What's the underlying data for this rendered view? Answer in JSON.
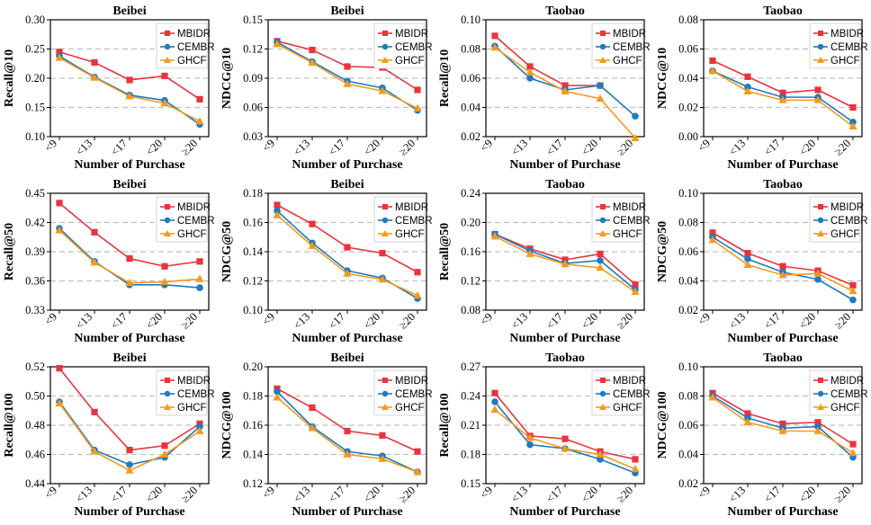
{
  "colors": {
    "MBIDR": "#e8343f",
    "CEMBR": "#1f7ac0",
    "GHCF": "#f39a1e",
    "grid": "#c0c0c0"
  },
  "legend": [
    "MBIDR",
    "CEMBR",
    "GHCF"
  ],
  "chart_data": [
    {
      "type": "line",
      "title": "Beibei",
      "ylabel": "Recall@10",
      "xlabel": "Number of Purchase",
      "categories": [
        "<9",
        "<13",
        "<17",
        "<20",
        "≥20"
      ],
      "ylim": [
        0.1,
        0.3
      ],
      "yticks": [
        "0.10",
        "0.15",
        "0.20",
        "0.25",
        "0.30"
      ],
      "series": [
        {
          "name": "MBIDR",
          "values": [
            0.245,
            0.227,
            0.197,
            0.204,
            0.164
          ]
        },
        {
          "name": "CEMBR",
          "values": [
            0.238,
            0.202,
            0.171,
            0.162,
            0.121
          ]
        },
        {
          "name": "GHCF",
          "values": [
            0.235,
            0.201,
            0.169,
            0.157,
            0.126
          ]
        }
      ]
    },
    {
      "type": "line",
      "title": "Beibei",
      "ylabel": "NDCG@10",
      "xlabel": "Number of Purchase",
      "categories": [
        "<9",
        "<13",
        "<17",
        "<20",
        "≥20"
      ],
      "ylim": [
        0.03,
        0.15
      ],
      "yticks": [
        "0.03",
        "0.06",
        "0.09",
        "0.12",
        "0.15"
      ],
      "series": [
        {
          "name": "MBIDR",
          "values": [
            0.128,
            0.119,
            0.102,
            0.101,
            0.078
          ]
        },
        {
          "name": "CEMBR",
          "values": [
            0.127,
            0.107,
            0.087,
            0.08,
            0.057
          ]
        },
        {
          "name": "GHCF",
          "values": [
            0.125,
            0.106,
            0.084,
            0.077,
            0.059
          ]
        }
      ]
    },
    {
      "type": "line",
      "title": "Taobao",
      "ylabel": "Recall@10",
      "xlabel": "Number of Purchase",
      "categories": [
        "<9",
        "<13",
        "<17",
        "<20",
        "≥20"
      ],
      "ylim": [
        0.02,
        0.1
      ],
      "yticks": [
        "0.02",
        "0.04",
        "0.06",
        "0.08",
        "0.10"
      ],
      "series": [
        {
          "name": "MBIDR",
          "values": [
            0.089,
            0.068,
            0.055,
            0.055,
            null
          ]
        },
        {
          "name": "CEMBR",
          "values": [
            0.082,
            0.06,
            0.052,
            0.055,
            0.034
          ]
        },
        {
          "name": "GHCF",
          "values": [
            0.081,
            0.064,
            0.051,
            0.046,
            0.019
          ]
        }
      ]
    },
    {
      "type": "line",
      "title": "Taobao",
      "ylabel": "NDCG@10",
      "xlabel": "Number of Purchase",
      "categories": [
        "<9",
        "<13",
        "<17",
        "<20",
        "≥20"
      ],
      "ylim": [
        0.0,
        0.08
      ],
      "yticks": [
        "0.00",
        "0.02",
        "0.04",
        "0.06",
        "0.08"
      ],
      "series": [
        {
          "name": "MBIDR",
          "values": [
            0.052,
            0.041,
            0.03,
            0.032,
            0.02
          ]
        },
        {
          "name": "CEMBR",
          "values": [
            0.045,
            0.034,
            0.027,
            0.027,
            0.01
          ]
        },
        {
          "name": "GHCF",
          "values": [
            0.045,
            0.031,
            0.025,
            0.025,
            0.007
          ]
        }
      ]
    },
    {
      "type": "line",
      "title": "Beibei",
      "ylabel": "Recall@50",
      "xlabel": "Number of Purchase",
      "categories": [
        "<9",
        "<13",
        "<17",
        "<20",
        "≥20"
      ],
      "ylim": [
        0.33,
        0.45
      ],
      "yticks": [
        "0.33",
        "0.36",
        "0.39",
        "0.42",
        "0.45"
      ],
      "series": [
        {
          "name": "MBIDR",
          "values": [
            0.44,
            0.41,
            0.383,
            0.375,
            0.38
          ]
        },
        {
          "name": "CEMBR",
          "values": [
            0.414,
            0.38,
            0.356,
            0.356,
            0.353
          ]
        },
        {
          "name": "GHCF",
          "values": [
            0.412,
            0.379,
            0.358,
            0.359,
            0.362
          ]
        }
      ]
    },
    {
      "type": "line",
      "title": "Beibei",
      "ylabel": "NDCG@50",
      "xlabel": "Number of Purchase",
      "categories": [
        "<9",
        "<13",
        "<17",
        "<20",
        "≥20"
      ],
      "ylim": [
        0.1,
        0.18
      ],
      "yticks": [
        "0.10",
        "0.12",
        "0.14",
        "0.16",
        "0.18"
      ],
      "series": [
        {
          "name": "MBIDR",
          "values": [
            0.172,
            0.159,
            0.143,
            0.139,
            0.126
          ]
        },
        {
          "name": "CEMBR",
          "values": [
            0.168,
            0.146,
            0.127,
            0.122,
            0.108
          ]
        },
        {
          "name": "GHCF",
          "values": [
            0.165,
            0.144,
            0.125,
            0.121,
            0.11
          ]
        }
      ]
    },
    {
      "type": "line",
      "title": "Taobao",
      "ylabel": "Recall@50",
      "xlabel": "Number of Purchase",
      "categories": [
        "<9",
        "<13",
        "<17",
        "<20",
        "≥20"
      ],
      "ylim": [
        0.08,
        0.24
      ],
      "yticks": [
        "0.08",
        "0.12",
        "0.16",
        "0.20",
        "0.24"
      ],
      "series": [
        {
          "name": "MBIDR",
          "values": [
            0.184,
            0.164,
            0.149,
            0.157,
            0.115
          ]
        },
        {
          "name": "CEMBR",
          "values": [
            0.184,
            0.161,
            0.144,
            0.148,
            0.108
          ]
        },
        {
          "name": "GHCF",
          "values": [
            0.181,
            0.157,
            0.143,
            0.138,
            0.105
          ]
        }
      ]
    },
    {
      "type": "line",
      "title": "Taobao",
      "ylabel": "NDCG@50",
      "xlabel": "Number of Purchase",
      "categories": [
        "<9",
        "<13",
        "<17",
        "<20",
        "≥20"
      ],
      "ylim": [
        0.02,
        0.1
      ],
      "yticks": [
        "0.02",
        "0.04",
        "0.06",
        "0.08",
        "0.10"
      ],
      "series": [
        {
          "name": "MBIDR",
          "values": [
            0.073,
            0.059,
            0.05,
            0.047,
            0.037
          ]
        },
        {
          "name": "CEMBR",
          "values": [
            0.07,
            0.055,
            0.046,
            0.041,
            0.027
          ]
        },
        {
          "name": "GHCF",
          "values": [
            0.068,
            0.051,
            0.044,
            0.045,
            0.033
          ]
        }
      ]
    },
    {
      "type": "line",
      "title": "Beibei",
      "ylabel": "Recall@100",
      "xlabel": "Number of Purchase",
      "categories": [
        "<9",
        "<13",
        "<17",
        "<20",
        "≥20"
      ],
      "ylim": [
        0.44,
        0.52
      ],
      "yticks": [
        "0.44",
        "0.46",
        "0.48",
        "0.50",
        "0.52"
      ],
      "series": [
        {
          "name": "MBIDR",
          "values": [
            0.519,
            0.489,
            0.463,
            0.466,
            0.481
          ]
        },
        {
          "name": "CEMBR",
          "values": [
            0.496,
            0.463,
            0.453,
            0.458,
            0.479
          ]
        },
        {
          "name": "GHCF",
          "values": [
            0.495,
            0.462,
            0.449,
            0.46,
            0.476
          ]
        }
      ]
    },
    {
      "type": "line",
      "title": "Beibei",
      "ylabel": "NDCG@100",
      "xlabel": "Number of Purchase",
      "categories": [
        "<9",
        "<13",
        "<17",
        "<20",
        "≥20"
      ],
      "ylim": [
        0.12,
        0.2
      ],
      "yticks": [
        "0.12",
        "0.14",
        "0.16",
        "0.18",
        "0.20"
      ],
      "series": [
        {
          "name": "MBIDR",
          "values": [
            0.185,
            0.172,
            0.156,
            0.153,
            0.142
          ]
        },
        {
          "name": "CEMBR",
          "values": [
            0.183,
            0.159,
            0.142,
            0.139,
            0.128
          ]
        },
        {
          "name": "GHCF",
          "values": [
            0.179,
            0.158,
            0.14,
            0.137,
            0.128
          ]
        }
      ]
    },
    {
      "type": "line",
      "title": "Taobao",
      "ylabel": "Recall@100",
      "xlabel": "Number of Purchase",
      "categories": [
        "<9",
        "<13",
        "<17",
        "<20",
        "≥20"
      ],
      "ylim": [
        0.15,
        0.27
      ],
      "yticks": [
        "0.15",
        "0.18",
        "0.21",
        "0.24",
        "0.27"
      ],
      "series": [
        {
          "name": "MBIDR",
          "values": [
            0.243,
            0.199,
            0.196,
            0.183,
            0.175
          ]
        },
        {
          "name": "CEMBR",
          "values": [
            0.234,
            0.19,
            0.186,
            0.175,
            0.161
          ]
        },
        {
          "name": "GHCF",
          "values": [
            0.226,
            0.197,
            0.186,
            0.18,
            0.165
          ]
        }
      ]
    },
    {
      "type": "line",
      "title": "Taobao",
      "ylabel": "NDCG@100",
      "xlabel": "Number of Purchase",
      "categories": [
        "<9",
        "<13",
        "<17",
        "<20",
        "≥20"
      ],
      "ylim": [
        0.02,
        0.1
      ],
      "yticks": [
        "0.02",
        "0.04",
        "0.06",
        "0.08",
        "0.10"
      ],
      "series": [
        {
          "name": "MBIDR",
          "values": [
            0.082,
            0.068,
            0.061,
            0.062,
            0.047
          ]
        },
        {
          "name": "CEMBR",
          "values": [
            0.08,
            0.065,
            0.058,
            0.059,
            0.038
          ]
        },
        {
          "name": "GHCF",
          "values": [
            0.079,
            0.062,
            0.056,
            0.056,
            0.041
          ]
        }
      ]
    }
  ]
}
